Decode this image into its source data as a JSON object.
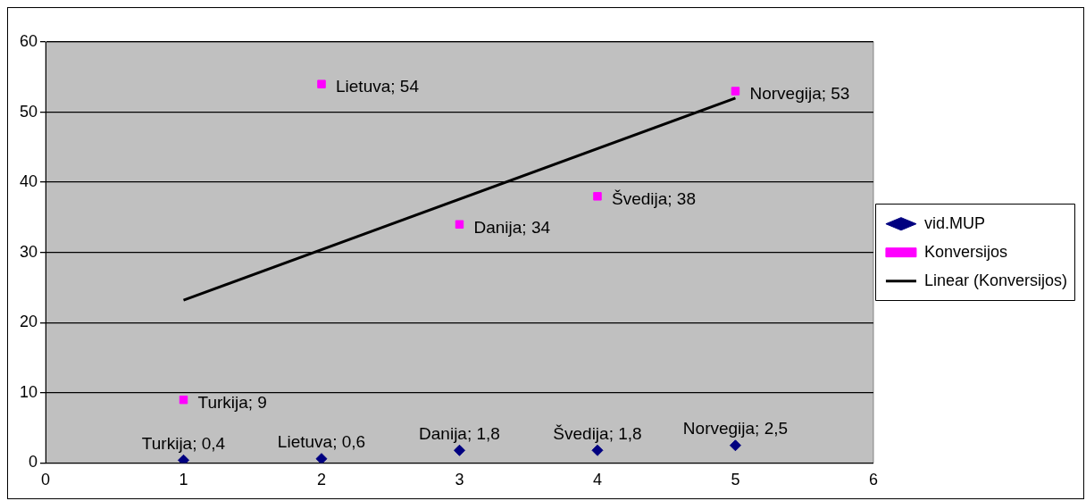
{
  "chart_data": {
    "type": "scatter",
    "xlim": [
      0,
      6
    ],
    "xticks": [
      0,
      1,
      2,
      3,
      4,
      5,
      6
    ],
    "ylim": [
      0,
      60
    ],
    "yticks": [
      0,
      10,
      20,
      30,
      40,
      50,
      60
    ],
    "grid": "y",
    "legend": "right",
    "series": [
      {
        "name": "vid.MUP",
        "color": "#000080",
        "marker": "diamond",
        "x": [
          1,
          2,
          3,
          4,
          5
        ],
        "values": [
          0.4,
          0.6,
          1.8,
          1.8,
          2.5
        ],
        "value_labels": [
          "Turkija; 0,4",
          "Lietuva; 0,6",
          "Danija; 1,8",
          "Švedija; 1,8",
          "Norvegija; 2,5"
        ]
      },
      {
        "name": "Konversijos",
        "color": "#ff00ff",
        "marker": "square",
        "x": [
          1,
          2,
          3,
          4,
          5
        ],
        "values": [
          9,
          54,
          34,
          38,
          53
        ],
        "value_labels": [
          "Turkija; 9",
          "Lietuva; 54",
          "Danija; 34",
          "Švedija; 38",
          "Norvegija; 53"
        ]
      },
      {
        "name": "Linear (Konversijos)",
        "type": "line",
        "color": "#000000",
        "marker": "none",
        "line_style": "solid",
        "x": [
          1,
          5
        ],
        "values": [
          23.2,
          52
        ]
      }
    ]
  }
}
